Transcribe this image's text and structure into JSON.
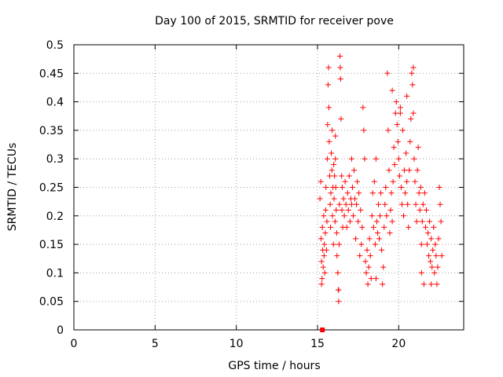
{
  "chart_data": {
    "type": "scatter",
    "title": "Day 100 of 2015, SRMTID for receiver pove",
    "xlabel": "GPS time / hours",
    "ylabel": "SRMTID / TECUs",
    "xlim": [
      0,
      24
    ],
    "ylim": [
      0,
      0.5
    ],
    "xticks": [
      "0",
      "5",
      "10",
      "15",
      "20"
    ],
    "yticks": [
      "0",
      "0.05",
      "0.1",
      "0.15",
      "0.2",
      "0.25",
      "0.3",
      "0.35",
      "0.4",
      "0.45",
      "0.5"
    ],
    "grid": true,
    "marker": "plus",
    "color": "#ff0000",
    "series": [
      {
        "values": [
          [
            15.15,
            0.23
          ],
          [
            15.2,
            0.26
          ],
          [
            15.22,
            0.16
          ],
          [
            15.25,
            0.12
          ],
          [
            15.28,
            0.09
          ],
          [
            15.3,
            0.18
          ],
          [
            15.32,
            0.14
          ],
          [
            15.35,
            0.11
          ],
          [
            15.38,
            0.2
          ],
          [
            15.4,
            0.13
          ],
          [
            15.42,
            0.15
          ],
          [
            15.45,
            0.1
          ],
          [
            15.48,
            0.17
          ],
          [
            15.5,
            0.21
          ],
          [
            15.52,
            0.25
          ],
          [
            15.55,
            0.14
          ],
          [
            15.58,
            0.19
          ],
          [
            15.6,
            0.3
          ],
          [
            15.62,
            0.36
          ],
          [
            15.65,
            0.43
          ],
          [
            15.68,
            0.46
          ],
          [
            15.7,
            0.39
          ],
          [
            15.72,
            0.33
          ],
          [
            15.75,
            0.27
          ],
          [
            15.78,
            0.22
          ],
          [
            15.8,
            0.18
          ],
          [
            15.82,
            0.24
          ],
          [
            15.85,
            0.31
          ],
          [
            15.88,
            0.28
          ],
          [
            15.9,
            0.35
          ],
          [
            15.92,
            0.2
          ],
          [
            15.95,
            0.25
          ],
          [
            15.98,
            0.15
          ],
          [
            16.0,
            0.29
          ],
          [
            16.02,
            0.23
          ],
          [
            16.05,
            0.27
          ],
          [
            16.08,
            0.19
          ],
          [
            16.1,
            0.3
          ],
          [
            16.12,
            0.25
          ],
          [
            16.15,
            0.21
          ],
          [
            16.18,
            0.17
          ],
          [
            16.2,
            0.13
          ],
          [
            16.25,
            0.1
          ],
          [
            16.28,
            0.07
          ],
          [
            16.3,
            0.05
          ],
          [
            16.33,
            0.15
          ],
          [
            16.35,
            0.22
          ],
          [
            16.38,
            0.48
          ],
          [
            16.4,
            0.46
          ],
          [
            16.42,
            0.44
          ],
          [
            16.45,
            0.37
          ],
          [
            16.48,
            0.27
          ],
          [
            16.5,
            0.21
          ],
          [
            16.52,
            0.25
          ],
          [
            16.55,
            0.18
          ],
          [
            16.6,
            0.23
          ],
          [
            16.65,
            0.2
          ],
          [
            16.7,
            0.26
          ],
          [
            16.75,
            0.22
          ],
          [
            16.8,
            0.18
          ],
          [
            16.85,
            0.24
          ],
          [
            16.9,
            0.21
          ],
          [
            16.95,
            0.27
          ],
          [
            17.0,
            0.19
          ],
          [
            17.05,
            0.23
          ],
          [
            17.1,
            0.22
          ],
          [
            17.15,
            0.25
          ],
          [
            17.2,
            0.2
          ],
          [
            17.25,
            0.28
          ],
          [
            17.3,
            0.23
          ],
          [
            17.35,
            0.16
          ],
          [
            17.4,
            0.22
          ],
          [
            17.45,
            0.26
          ],
          [
            17.5,
            0.19
          ],
          [
            17.55,
            0.24
          ],
          [
            17.6,
            0.13
          ],
          [
            17.65,
            0.21
          ],
          [
            17.7,
            0.15
          ],
          [
            17.75,
            0.18
          ],
          [
            17.8,
            0.39
          ],
          [
            17.85,
            0.35
          ],
          [
            17.9,
            0.3
          ],
          [
            17.95,
            0.12
          ],
          [
            18.0,
            0.1
          ],
          [
            18.05,
            0.14
          ],
          [
            18.1,
            0.08
          ],
          [
            18.15,
            0.11
          ],
          [
            18.2,
            0.16
          ],
          [
            18.25,
            0.13
          ],
          [
            18.3,
            0.09
          ],
          [
            18.35,
            0.2
          ],
          [
            18.4,
            0.24
          ],
          [
            18.45,
            0.18
          ],
          [
            18.5,
            0.26
          ],
          [
            18.55,
            0.15
          ],
          [
            18.6,
            0.3
          ],
          [
            18.65,
            0.19
          ],
          [
            18.7,
            0.17
          ],
          [
            18.75,
            0.22
          ],
          [
            18.8,
            0.16
          ],
          [
            18.85,
            0.2
          ],
          [
            18.9,
            0.24
          ],
          [
            18.95,
            0.14
          ],
          [
            19.0,
            0.08
          ],
          [
            19.05,
            0.11
          ],
          [
            19.1,
            0.18
          ],
          [
            19.15,
            0.22
          ],
          [
            19.2,
            0.25
          ],
          [
            19.25,
            0.2
          ],
          [
            19.3,
            0.45
          ],
          [
            19.35,
            0.35
          ],
          [
            19.4,
            0.28
          ],
          [
            19.45,
            0.17
          ],
          [
            19.5,
            0.21
          ],
          [
            19.55,
            0.24
          ],
          [
            19.6,
            0.19
          ],
          [
            19.65,
            0.26
          ],
          [
            19.7,
            0.32
          ],
          [
            19.75,
            0.29
          ],
          [
            19.8,
            0.38
          ],
          [
            19.85,
            0.4
          ],
          [
            19.9,
            0.36
          ],
          [
            19.95,
            0.33
          ],
          [
            20.0,
            0.3
          ],
          [
            20.05,
            0.27
          ],
          [
            20.1,
            0.38
          ],
          [
            20.15,
            0.25
          ],
          [
            20.2,
            0.22
          ],
          [
            20.25,
            0.35
          ],
          [
            20.3,
            0.2
          ],
          [
            20.35,
            0.28
          ],
          [
            20.4,
            0.24
          ],
          [
            20.45,
            0.31
          ],
          [
            20.5,
            0.26
          ],
          [
            20.55,
            0.22
          ],
          [
            20.6,
            0.18
          ],
          [
            20.65,
            0.28
          ],
          [
            20.7,
            0.33
          ],
          [
            20.75,
            0.37
          ],
          [
            20.8,
            0.45
          ],
          [
            20.85,
            0.43
          ],
          [
            20.9,
            0.38
          ],
          [
            20.95,
            0.3
          ],
          [
            21.0,
            0.26
          ],
          [
            21.05,
            0.22
          ],
          [
            21.1,
            0.19
          ],
          [
            21.15,
            0.28
          ],
          [
            21.2,
            0.32
          ],
          [
            21.25,
            0.24
          ],
          [
            21.3,
            0.21
          ],
          [
            21.35,
            0.25
          ],
          [
            21.4,
            0.15
          ],
          [
            21.45,
            0.19
          ],
          [
            21.5,
            0.22
          ],
          [
            21.55,
            0.08
          ],
          [
            21.6,
            0.24
          ],
          [
            21.65,
            0.18
          ],
          [
            21.7,
            0.21
          ],
          [
            21.75,
            0.15
          ],
          [
            21.8,
            0.17
          ],
          [
            21.85,
            0.13
          ],
          [
            21.9,
            0.19
          ],
          [
            21.95,
            0.12
          ],
          [
            22.0,
            0.16
          ],
          [
            22.05,
            0.11
          ],
          [
            22.1,
            0.14
          ],
          [
            22.15,
            0.18
          ],
          [
            22.2,
            0.1
          ],
          [
            22.25,
            0.15
          ],
          [
            22.3,
            0.13
          ],
          [
            22.35,
            0.08
          ],
          [
            22.4,
            0.11
          ],
          [
            22.45,
            0.16
          ],
          [
            22.5,
            0.25
          ],
          [
            22.55,
            0.22
          ],
          [
            22.6,
            0.19
          ],
          [
            22.65,
            0.13
          ],
          [
            15.25,
            0.08
          ],
          [
            16.1,
            0.34
          ],
          [
            16.3,
            0.07
          ],
          [
            17.1,
            0.3
          ],
          [
            18.6,
            0.09
          ],
          [
            19.6,
            0.42
          ],
          [
            20.1,
            0.39
          ],
          [
            20.5,
            0.41
          ],
          [
            20.9,
            0.46
          ],
          [
            21.4,
            0.1
          ],
          [
            22.0,
            0.08
          ]
        ]
      },
      {
        "marker": "square",
        "values": [
          [
            15.3,
            0.0
          ]
        ]
      }
    ]
  }
}
